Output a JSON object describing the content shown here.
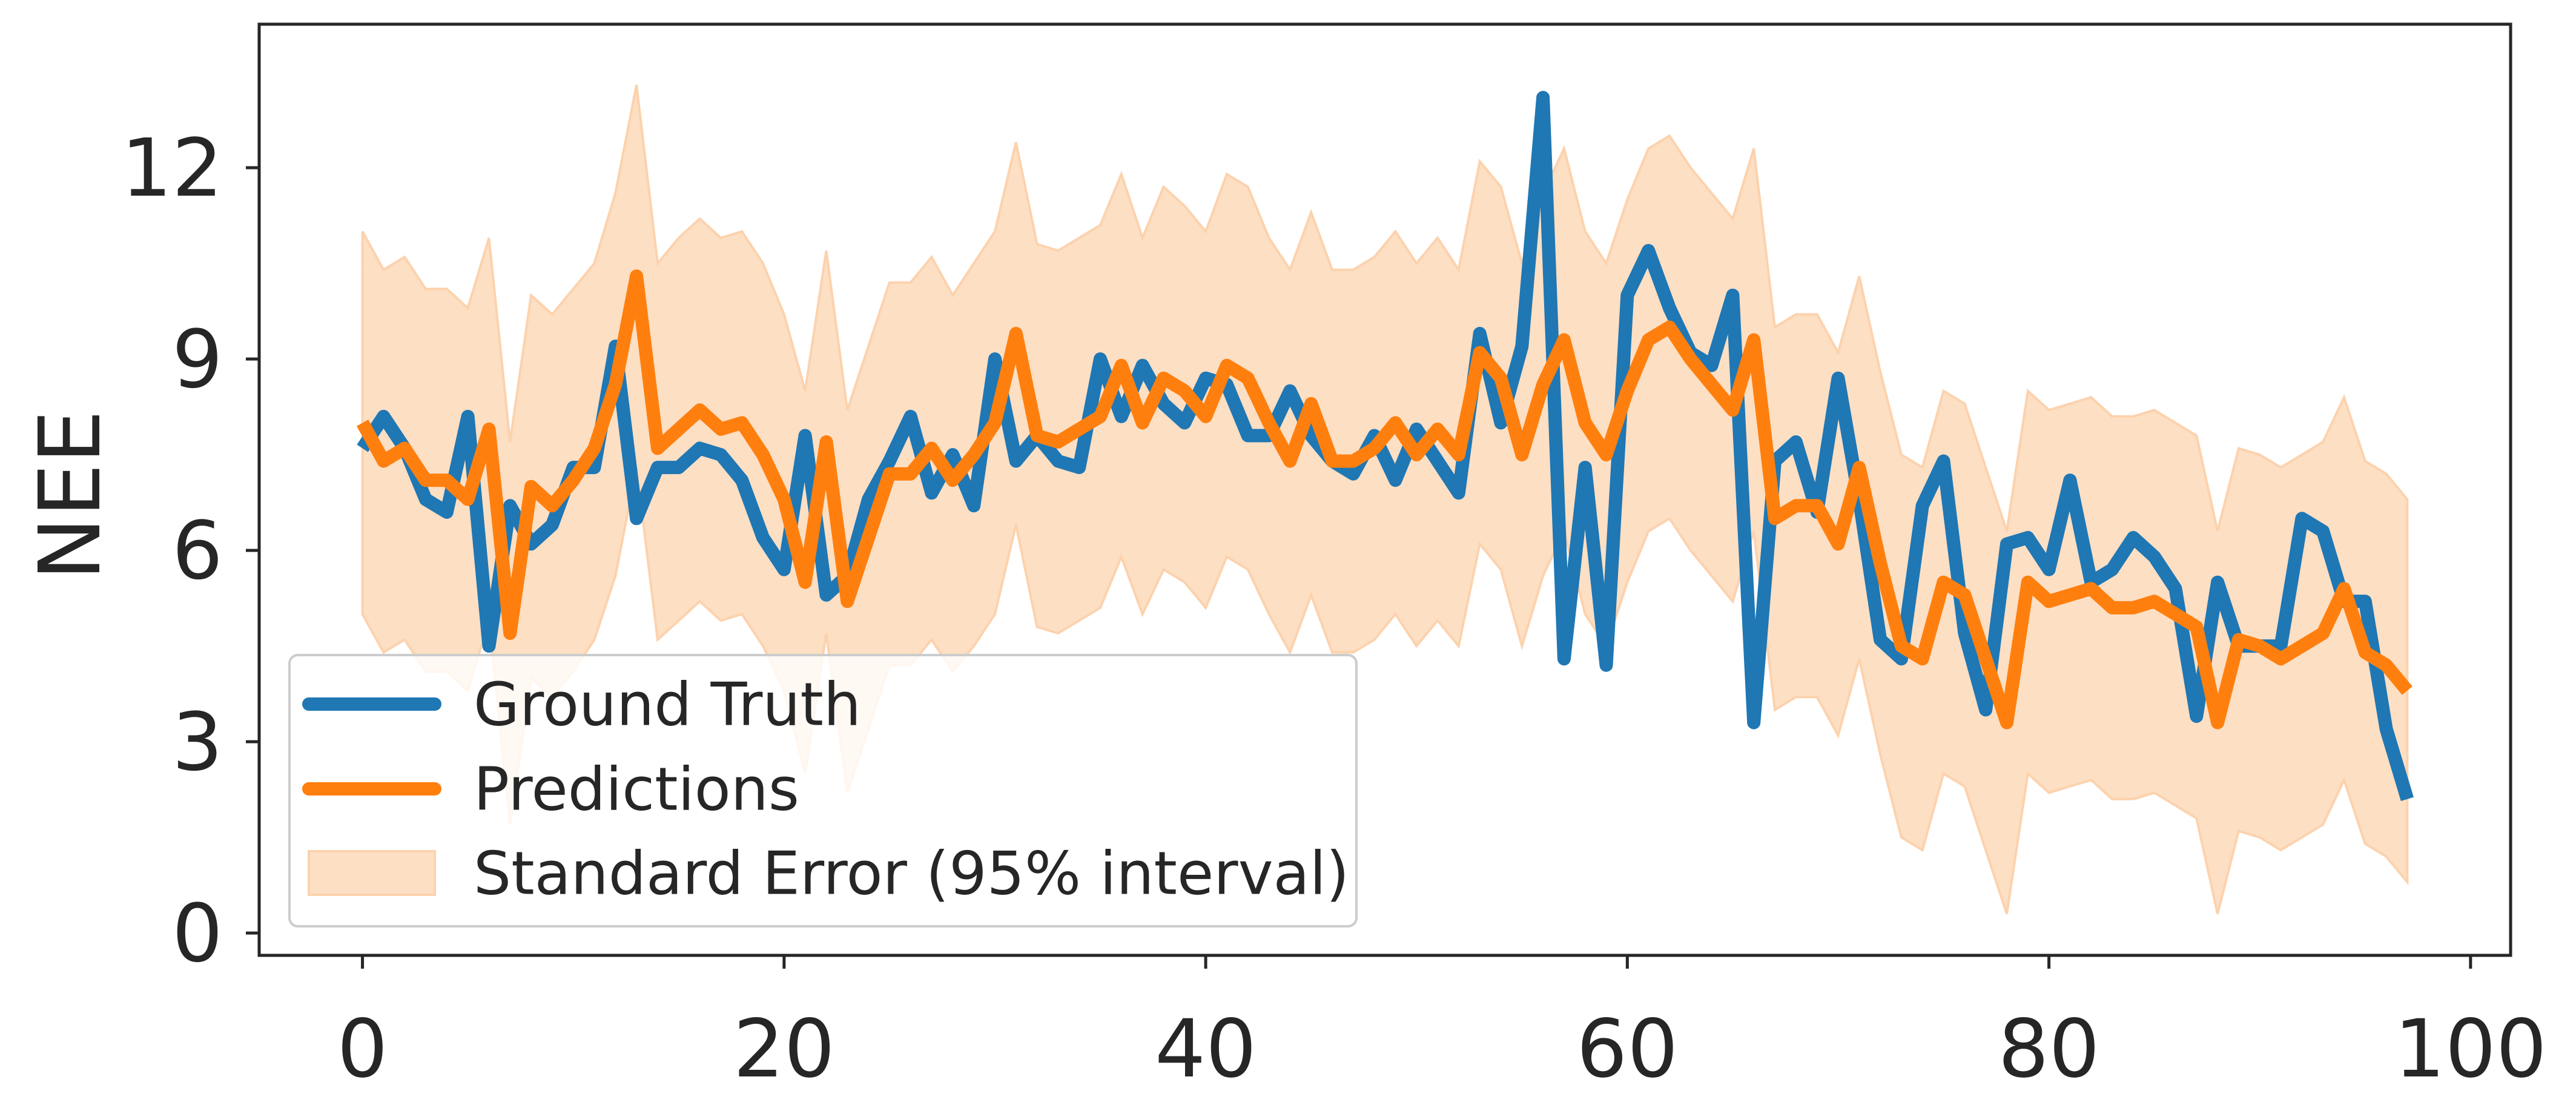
{
  "chart_data": {
    "type": "line",
    "title": "",
    "xlabel": "",
    "ylabel": "NEE",
    "xlim": [
      -4.9,
      101.9
    ],
    "ylim": [
      -0.35,
      14.25
    ],
    "xticks": [
      0,
      20,
      40,
      60,
      80,
      100
    ],
    "yticks": [
      0,
      3,
      6,
      9,
      12
    ],
    "grid": false,
    "legend_position": "lower-left",
    "colors": {
      "ground_truth": "#1f77b4",
      "predictions": "#ff7f0e",
      "band_fill": "#fddfc4",
      "band_edge": "#fcd2ad",
      "axes": "#262626",
      "legend_edge": "#cccccc"
    },
    "series": [
      {
        "name": "Ground Truth",
        "values": [
          7.6,
          8.1,
          7.6,
          6.8,
          6.6,
          8.1,
          4.5,
          6.7,
          6.1,
          6.4,
          7.3,
          7.3,
          9.2,
          6.5,
          7.3,
          7.3,
          7.6,
          7.5,
          7.1,
          6.2,
          5.7,
          7.8,
          5.3,
          5.6,
          6.8,
          7.4,
          8.1,
          6.9,
          7.5,
          6.7,
          9.0,
          7.4,
          7.8,
          7.4,
          7.3,
          9.0,
          8.1,
          8.9,
          8.3,
          8.0,
          8.7,
          8.6,
          7.8,
          7.8,
          8.5,
          7.8,
          7.4,
          7.2,
          7.8,
          7.1,
          7.9,
          7.4,
          6.9,
          9.4,
          8.0,
          9.2,
          13.1,
          4.3,
          7.3,
          4.2,
          10.0,
          10.7,
          9.8,
          9.1,
          8.9,
          10.0,
          3.3,
          7.4,
          7.7,
          6.6,
          8.7,
          6.8,
          4.6,
          4.3,
          6.7,
          7.4,
          4.7,
          3.5,
          6.1,
          6.2,
          5.7,
          7.1,
          5.5,
          5.7,
          6.2,
          5.9,
          5.4,
          3.4,
          5.5,
          4.5,
          4.5,
          4.5,
          6.5,
          6.3,
          5.2,
          5.2,
          3.2,
          2.1
        ]
      },
      {
        "name": "Predictions",
        "values": [
          8.0,
          7.4,
          7.6,
          7.1,
          7.1,
          6.8,
          7.9,
          4.7,
          7.0,
          6.7,
          7.1,
          7.6,
          8.6,
          10.3,
          7.6,
          7.9,
          8.2,
          7.9,
          8.0,
          7.5,
          6.8,
          5.5,
          7.7,
          5.2,
          6.2,
          7.2,
          7.2,
          7.6,
          7.1,
          7.5,
          8.0,
          9.4,
          7.8,
          7.7,
          7.9,
          8.1,
          8.9,
          8.0,
          8.7,
          8.5,
          8.1,
          8.9,
          8.7,
          8.0,
          7.4,
          8.3,
          7.4,
          7.4,
          7.6,
          8.0,
          7.5,
          7.9,
          7.5,
          9.1,
          8.7,
          7.5,
          8.6,
          9.3,
          8.0,
          7.5,
          8.5,
          9.3,
          9.5,
          9.0,
          8.6,
          8.2,
          9.3,
          6.5,
          6.7,
          6.7,
          6.1,
          7.3,
          5.8,
          4.5,
          4.3,
          5.5,
          5.3,
          4.3,
          3.3,
          5.5,
          5.2,
          5.3,
          5.4,
          5.1,
          5.1,
          5.2,
          5.0,
          4.8,
          3.3,
          4.6,
          4.5,
          4.3,
          4.5,
          4.7,
          5.4,
          4.4,
          4.2,
          3.8
        ]
      }
    ],
    "band": {
      "name": "Standard Error (95% interval)",
      "upper": [
        11.0,
        10.4,
        10.6,
        10.1,
        10.1,
        9.8,
        10.9,
        7.7,
        10.0,
        9.7,
        10.1,
        10.5,
        11.6,
        13.3,
        10.5,
        10.9,
        11.2,
        10.9,
        11.0,
        10.5,
        9.7,
        8.5,
        10.7,
        8.2,
        9.2,
        10.2,
        10.2,
        10.6,
        10.0,
        10.5,
        11.0,
        12.4,
        10.8,
        10.7,
        10.9,
        11.1,
        11.9,
        10.9,
        11.7,
        11.4,
        11.0,
        11.9,
        11.7,
        10.9,
        10.4,
        11.3,
        10.4,
        10.4,
        10.6,
        11.0,
        10.5,
        10.9,
        10.4,
        12.1,
        11.7,
        10.5,
        11.6,
        12.3,
        11.0,
        10.5,
        11.5,
        12.3,
        12.5,
        12.0,
        11.6,
        11.2,
        12.3,
        9.5,
        9.7,
        9.7,
        9.1,
        10.3,
        8.8,
        7.5,
        7.3,
        8.5,
        8.3,
        7.3,
        6.3,
        8.5,
        8.2,
        8.3,
        8.4,
        8.1,
        8.1,
        8.2,
        8.0,
        7.8,
        6.3,
        7.6,
        7.5,
        7.3,
        7.5,
        7.7,
        8.4,
        7.4,
        7.2,
        6.8
      ],
      "lower": [
        5.0,
        4.4,
        4.6,
        4.1,
        4.1,
        3.8,
        4.9,
        1.7,
        4.0,
        3.7,
        4.1,
        4.6,
        5.6,
        7.3,
        4.6,
        4.9,
        5.2,
        4.9,
        5.0,
        4.5,
        3.8,
        2.5,
        4.7,
        2.2,
        3.2,
        4.2,
        4.2,
        4.6,
        4.1,
        4.5,
        5.0,
        6.4,
        4.8,
        4.7,
        4.9,
        5.1,
        5.9,
        5.0,
        5.7,
        5.5,
        5.1,
        5.9,
        5.7,
        5.0,
        4.4,
        5.3,
        4.4,
        4.4,
        4.6,
        5.0,
        4.5,
        4.9,
        4.5,
        6.1,
        5.7,
        4.5,
        5.6,
        6.3,
        5.0,
        4.5,
        5.5,
        6.3,
        6.5,
        6.0,
        5.6,
        5.2,
        6.3,
        3.5,
        3.7,
        3.7,
        3.1,
        4.3,
        2.8,
        1.5,
        1.3,
        2.5,
        2.3,
        1.3,
        0.3,
        2.5,
        2.2,
        2.3,
        2.4,
        2.1,
        2.1,
        2.2,
        2.0,
        1.8,
        0.3,
        1.6,
        1.5,
        1.3,
        1.5,
        1.7,
        2.4,
        1.4,
        1.2,
        0.8
      ]
    }
  }
}
